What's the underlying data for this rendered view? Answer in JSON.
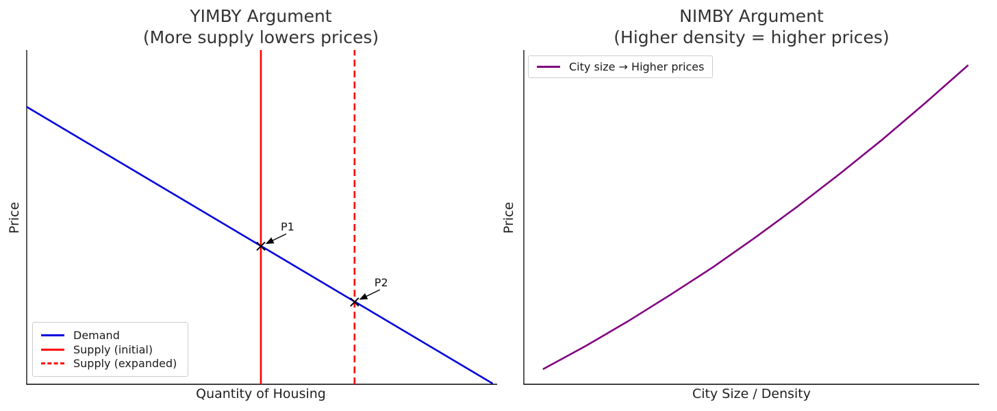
{
  "figure": {
    "background": "#ffffff",
    "spine_color": "#000000",
    "title_color": "#333333"
  },
  "chart_data": [
    {
      "type": "line",
      "title": "YIMBY Argument",
      "subtitle": "(More supply lowers prices)",
      "xlabel": "Quantity of Housing",
      "ylabel": "Price",
      "xlim": [
        0,
        10
      ],
      "ylim": [
        0,
        10
      ],
      "ticks": "none",
      "grid": false,
      "legend_position": "lower left",
      "series": [
        {
          "name": "Demand",
          "color": "#0000dd",
          "dash": "solid",
          "points": [
            [
              0,
              8.3
            ],
            [
              9.95,
              0.02
            ]
          ]
        },
        {
          "name": "Supply (initial)",
          "color": "#ff0000",
          "dash": "solid",
          "points": [
            [
              5,
              0
            ],
            [
              5,
              10
            ]
          ]
        },
        {
          "name": "Supply (expanded)",
          "color": "#ff0000",
          "dash": "dashed",
          "points": [
            [
              7,
              0
            ],
            [
              7,
              10
            ]
          ]
        }
      ],
      "annotations": [
        {
          "label": "P1",
          "x": 5,
          "y": 4.13,
          "marker": "x"
        },
        {
          "label": "P2",
          "x": 7,
          "y": 2.46,
          "marker": "x"
        }
      ]
    },
    {
      "type": "line",
      "title": "NIMBY Argument",
      "subtitle": "(Higher density = higher prices)",
      "xlabel": "City Size / Density",
      "ylabel": "Price",
      "xlim": [
        0,
        10
      ],
      "ylim": [
        0,
        10
      ],
      "ticks": "none",
      "grid": false,
      "legend_position": "upper left",
      "series": [
        {
          "name": "City size → Higher prices",
          "color": "#800080",
          "dash": "solid",
          "points": [
            [
              0.42,
              0.45
            ],
            [
              1.35,
              1.14
            ],
            [
              2.28,
              1.88
            ],
            [
              3.21,
              2.67
            ],
            [
              4.15,
              3.5
            ],
            [
              5.08,
              4.39
            ],
            [
              6.01,
              5.32
            ],
            [
              6.95,
              6.31
            ],
            [
              7.89,
              7.34
            ],
            [
              8.82,
              8.42
            ],
            [
              9.76,
              9.55
            ]
          ]
        }
      ],
      "annotations": []
    }
  ]
}
